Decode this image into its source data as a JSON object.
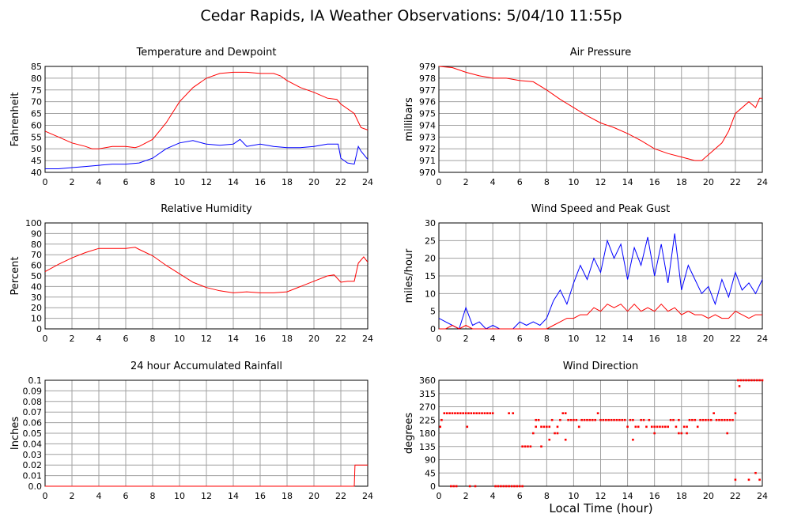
{
  "page_title": "Cedar Rapids, IA Weather Observations: 5/04/10 11:55p",
  "xlabel": "Local Time (hour)",
  "chart_data": [
    {
      "type": "line",
      "title": "Temperature and Dewpoint",
      "ylabel": "Fahrenheit",
      "xlim": [
        0,
        24
      ],
      "ylim": [
        40,
        85
      ],
      "xticks": [
        0,
        2,
        4,
        6,
        8,
        10,
        12,
        14,
        16,
        18,
        20,
        22,
        24
      ],
      "yticks": [
        40,
        45,
        50,
        55,
        60,
        65,
        70,
        75,
        80,
        85
      ],
      "grid": true,
      "series": [
        {
          "color": "#ff0000",
          "x": [
            0,
            1,
            2,
            3,
            3.5,
            4,
            5,
            6,
            6.7,
            7,
            8,
            9,
            10,
            11,
            12,
            13,
            14,
            15,
            16,
            17,
            17.5,
            18,
            19,
            20,
            21,
            21.7,
            22,
            23,
            23.5,
            24
          ],
          "values": [
            57.5,
            55,
            52.5,
            51,
            50,
            50,
            51,
            51,
            50.5,
            51,
            54,
            61,
            70,
            76,
            80,
            82,
            82.5,
            82.5,
            82,
            82,
            81,
            79,
            76,
            74,
            71.5,
            71,
            69,
            65,
            59,
            58
          ]
        },
        {
          "color": "#0000ff",
          "x": [
            0,
            1,
            2,
            3,
            4,
            5,
            6,
            7,
            8,
            9,
            10,
            11,
            12,
            13,
            14,
            14.5,
            15,
            16,
            17,
            18,
            19,
            20,
            21,
            21.8,
            22,
            22.5,
            23,
            23.3,
            23.5,
            24
          ],
          "values": [
            41.5,
            41.5,
            42,
            42.5,
            43,
            43.5,
            43.5,
            44,
            46,
            50,
            52.5,
            53.5,
            52,
            51.5,
            52,
            54,
            51,
            52,
            51,
            50.5,
            50.5,
            51,
            52,
            52,
            46,
            44,
            43.5,
            51,
            49,
            45.5
          ]
        }
      ]
    },
    {
      "type": "line",
      "title": "Air Pressure",
      "ylabel": "millibars",
      "xlim": [
        0,
        24
      ],
      "ylim": [
        970,
        979
      ],
      "xticks": [
        0,
        2,
        4,
        6,
        8,
        10,
        12,
        14,
        16,
        18,
        20,
        22,
        24
      ],
      "yticks": [
        970,
        971,
        972,
        973,
        974,
        975,
        976,
        977,
        978,
        979
      ],
      "grid": true,
      "series": [
        {
          "color": "#ff0000",
          "x": [
            0,
            1,
            2,
            3,
            4,
            5,
            6,
            7,
            8,
            9,
            10,
            11,
            12,
            13,
            14,
            15,
            16,
            17,
            18,
            19,
            19.5,
            20,
            21,
            21.5,
            22,
            23,
            23.5,
            23.8,
            24
          ],
          "values": [
            979,
            978.9,
            978.5,
            978.2,
            978,
            978,
            977.8,
            977.7,
            977,
            976.2,
            975.5,
            974.8,
            974.2,
            973.8,
            973.3,
            972.7,
            972,
            971.6,
            971.3,
            971,
            971,
            971.5,
            972.5,
            973.5,
            975,
            976,
            975.5,
            976.3,
            976.3
          ]
        }
      ]
    },
    {
      "type": "line",
      "title": "Relative Humidity",
      "ylabel": "Percent",
      "xlim": [
        0,
        24
      ],
      "ylim": [
        0,
        100
      ],
      "xticks": [
        0,
        2,
        4,
        6,
        8,
        10,
        12,
        14,
        16,
        18,
        20,
        22,
        24
      ],
      "yticks": [
        0,
        10,
        20,
        30,
        40,
        50,
        60,
        70,
        80,
        90,
        100
      ],
      "grid": true,
      "series": [
        {
          "color": "#ff0000",
          "x": [
            0,
            1,
            2,
            3,
            4,
            5,
            6,
            6.7,
            7,
            8,
            9,
            10,
            11,
            12,
            13,
            14,
            15,
            16,
            17,
            18,
            19,
            20,
            21,
            21.5,
            22,
            22.5,
            23,
            23.3,
            23.7,
            24
          ],
          "values": [
            54,
            61,
            67,
            72,
            76,
            76,
            76,
            77,
            75,
            69,
            60,
            52,
            44,
            39,
            36,
            34,
            35,
            34,
            34,
            35,
            40,
            45,
            50,
            51,
            44,
            45,
            45,
            62,
            68,
            63
          ]
        }
      ]
    },
    {
      "type": "line",
      "title": "Wind Speed and Peak Gust",
      "ylabel": "miles/hour",
      "xlim": [
        0,
        24
      ],
      "ylim": [
        0,
        30
      ],
      "xticks": [
        0,
        2,
        4,
        6,
        8,
        10,
        12,
        14,
        16,
        18,
        20,
        22,
        24
      ],
      "yticks": [
        0,
        5,
        10,
        15,
        20,
        25,
        30
      ],
      "grid": true,
      "series": [
        {
          "color": "#0000ff",
          "x": [
            0,
            0.5,
            1,
            1.5,
            2,
            2.5,
            3,
            3.5,
            4,
            4.5,
            5,
            5.5,
            6,
            6.5,
            7,
            7.5,
            8,
            8.5,
            9,
            9.5,
            10,
            10.5,
            11,
            11.5,
            12,
            12.5,
            13,
            13.5,
            14,
            14.5,
            15,
            15.5,
            16,
            16.5,
            17,
            17.5,
            18,
            18.5,
            19,
            19.5,
            20,
            20.5,
            21,
            21.5,
            22,
            22.5,
            23,
            23.5,
            24
          ],
          "values": [
            3,
            2,
            1,
            0,
            6,
            1,
            2,
            0,
            1,
            0,
            0,
            0,
            2,
            1,
            2,
            1,
            3,
            8,
            11,
            7,
            13,
            18,
            14,
            20,
            16,
            25,
            20,
            24,
            14,
            23,
            18,
            26,
            15,
            24,
            13,
            27,
            11,
            18,
            14,
            10,
            12,
            7,
            14,
            9,
            16,
            11,
            13,
            10,
            14
          ]
        },
        {
          "color": "#ff0000",
          "x": [
            0,
            0.5,
            1,
            1.5,
            2,
            2.5,
            3,
            3.5,
            4,
            4.5,
            5,
            5.5,
            6,
            6.5,
            7,
            7.5,
            8,
            8.5,
            9,
            9.5,
            10,
            10.5,
            11,
            11.5,
            12,
            12.5,
            13,
            13.5,
            14,
            14.5,
            15,
            15.5,
            16,
            16.5,
            17,
            17.5,
            18,
            18.5,
            19,
            19.5,
            20,
            20.5,
            21,
            21.5,
            22,
            22.5,
            23,
            23.5,
            24
          ],
          "values": [
            0,
            0,
            1,
            0,
            1,
            0,
            0,
            0,
            0,
            0,
            0,
            0,
            0,
            0,
            0,
            0,
            0,
            1,
            2,
            3,
            3,
            4,
            4,
            6,
            5,
            7,
            6,
            7,
            5,
            7,
            5,
            6,
            5,
            7,
            5,
            6,
            4,
            5,
            4,
            4,
            3,
            4,
            3,
            3,
            5,
            4,
            3,
            4,
            4
          ]
        }
      ]
    },
    {
      "type": "line",
      "title": "24 hour Accumulated Rainfall",
      "ylabel": "Inches",
      "xlim": [
        0,
        24
      ],
      "ylim": [
        0,
        0.1
      ],
      "xticks": [
        0,
        2,
        4,
        6,
        8,
        10,
        12,
        14,
        16,
        18,
        20,
        22,
        24
      ],
      "yticks": [
        0.0,
        0.01,
        0.02,
        0.03,
        0.04,
        0.05,
        0.06,
        0.07,
        0.08,
        0.09,
        0.1
      ],
      "ytick_labels": [
        "0.0",
        "0.01",
        "0.02",
        "0.03",
        "0.04",
        "0.05",
        "0.06",
        "0.07",
        "0.08",
        "0.09",
        "0.1"
      ],
      "grid": true,
      "series": [
        {
          "color": "#ff0000",
          "x": [
            0,
            23,
            23.05,
            24
          ],
          "values": [
            0,
            0,
            0.02,
            0.02
          ]
        }
      ]
    },
    {
      "type": "scatter",
      "title": "Wind Direction",
      "ylabel": "degrees",
      "xlim": [
        0,
        24
      ],
      "ylim": [
        0,
        360
      ],
      "xticks": [
        0,
        2,
        4,
        6,
        8,
        10,
        12,
        14,
        16,
        18,
        20,
        22,
        24
      ],
      "yticks": [
        0,
        45,
        90,
        135,
        180,
        225,
        270,
        315,
        360
      ],
      "grid": true,
      "series": [
        {
          "color": "#ff0000",
          "x": [
            0.1,
            0.2,
            0.4,
            0.6,
            0.8,
            1.0,
            1.2,
            1.4,
            1.6,
            1.8,
            2.0,
            2.2,
            2.4,
            2.6,
            2.8,
            3.0,
            3.2,
            3.4,
            3.6,
            3.8,
            4.0,
            0.9,
            1.1,
            1.3,
            2.1,
            2.3,
            2.7,
            4.2,
            4.4,
            4.6,
            4.8,
            5.0,
            5.2,
            5.4,
            5.6,
            5.8,
            6.0,
            6.2,
            5.2,
            5.5,
            6.2,
            6.4,
            6.6,
            6.8,
            7.0,
            7.2,
            7.4,
            7.6,
            7.8,
            8.0,
            8.2,
            8.4,
            8.6,
            8.8,
            9.0,
            9.2,
            9.4,
            9.6,
            9.8,
            10.0,
            10.2,
            10.4,
            10.6,
            10.8,
            11.0,
            11.2,
            11.4,
            11.6,
            11.8,
            12.0,
            12.2,
            12.4,
            12.6,
            12.8,
            13.0,
            13.2,
            13.4,
            13.6,
            13.8,
            14.0,
            14.2,
            14.4,
            14.6,
            14.8,
            15.0,
            15.2,
            15.4,
            15.6,
            15.8,
            16.0,
            16.2,
            16.4,
            16.6,
            16.8,
            17.0,
            17.2,
            17.4,
            17.6,
            17.8,
            18.0,
            18.2,
            18.4,
            18.6,
            18.8,
            19.0,
            19.2,
            19.4,
            19.6,
            19.8,
            20.0,
            20.2,
            20.4,
            20.6,
            20.8,
            21.0,
            21.2,
            21.4,
            21.6,
            21.8,
            22.0,
            22.2,
            22.4,
            22.6,
            22.8,
            23.0,
            23.2,
            23.4,
            23.6,
            23.8,
            24.0,
            22.0,
            22.3,
            23.0,
            23.5,
            23.8,
            7.2,
            7.6,
            8.2,
            9.4,
            14.4,
            16.0,
            17.8,
            18.4,
            21.4,
            8.8,
            10.4
          ],
          "values": [
            202,
            225,
            248,
            248,
            248,
            248,
            248,
            248,
            248,
            248,
            248,
            248,
            248,
            248,
            248,
            248,
            248,
            248,
            248,
            248,
            248,
            0,
            0,
            0,
            202,
            0,
            0,
            0,
            0,
            0,
            0,
            0,
            0,
            0,
            0,
            0,
            0,
            0,
            248,
            248,
            135,
            135,
            135,
            135,
            180,
            225,
            225,
            202,
            202,
            202,
            202,
            225,
            180,
            180,
            225,
            248,
            248,
            225,
            225,
            225,
            225,
            202,
            225,
            225,
            225,
            225,
            225,
            225,
            248,
            225,
            225,
            225,
            225,
            225,
            225,
            225,
            225,
            225,
            225,
            202,
            225,
            225,
            202,
            202,
            225,
            225,
            202,
            225,
            202,
            202,
            202,
            202,
            202,
            202,
            202,
            225,
            225,
            202,
            225,
            180,
            202,
            202,
            225,
            225,
            225,
            202,
            225,
            225,
            225,
            225,
            225,
            248,
            225,
            225,
            225,
            225,
            225,
            225,
            225,
            248,
            360,
            360,
            360,
            360,
            360,
            360,
            360,
            360,
            360,
            360,
            22,
            340,
            22,
            45,
            22,
            202,
            135,
            158,
            158,
            158,
            180,
            180,
            180,
            180,
            202,
            202
          ]
        }
      ]
    }
  ]
}
